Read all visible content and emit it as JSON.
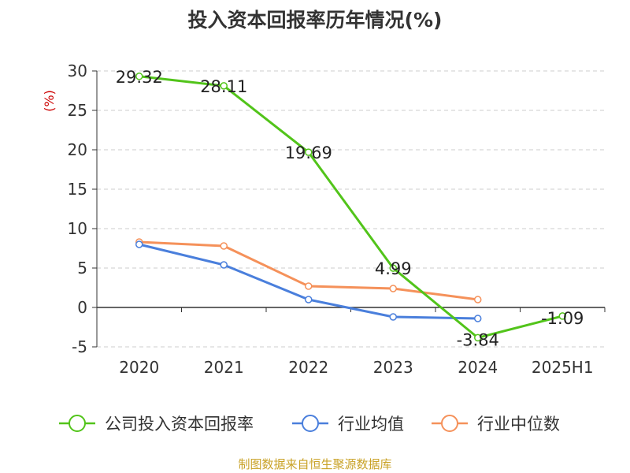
{
  "chart_data": {
    "type": "line",
    "title": "投入资本回报率历年情况(%)",
    "ylabel": "(%)",
    "categories": [
      "2020",
      "2021",
      "2022",
      "2023",
      "2024",
      "2025H1"
    ],
    "ylim": [
      -5,
      30
    ],
    "yticks": [
      30,
      25,
      20,
      15,
      10,
      5,
      0,
      -5
    ],
    "grid": true,
    "legend_position": "bottom",
    "series": [
      {
        "name": "公司投入资本回报率",
        "color": "#52c41a",
        "values": [
          29.32,
          28.11,
          19.69,
          4.99,
          -3.84,
          -1.09
        ],
        "labels": [
          "29.32",
          "28.11",
          "19.69",
          "4.99",
          "-3.84",
          "-1.09"
        ]
      },
      {
        "name": "行业均值",
        "color": "#4a7fdc",
        "values": [
          8.0,
          5.4,
          1.0,
          -1.2,
          -1.4,
          null
        ]
      },
      {
        "name": "行业中位数",
        "color": "#f5915a",
        "values": [
          8.3,
          7.8,
          2.7,
          2.4,
          1.0,
          null
        ]
      }
    ]
  },
  "source": "制图数据来自恒生聚源数据库"
}
